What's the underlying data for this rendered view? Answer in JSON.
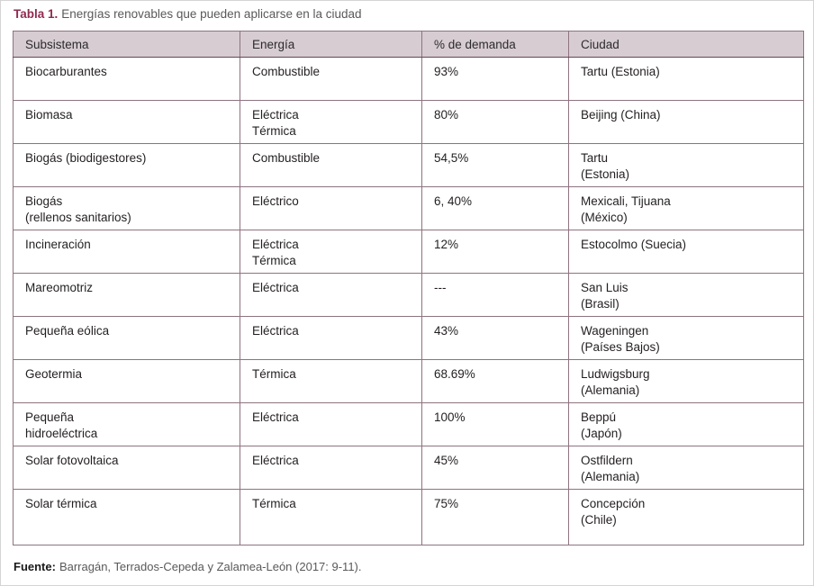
{
  "title": {
    "label": "Tabla 1.",
    "text": "Energías renovables que pueden aplicarse en la ciudad"
  },
  "table": {
    "headers": [
      "Subsistema",
      "Energía",
      "% de demanda",
      "Ciudad"
    ],
    "column_keys": [
      "subsistema",
      "energia",
      "demanda",
      "ciudad"
    ],
    "rows": [
      {
        "subsistema": "Biocarburantes",
        "energia": "Combustible",
        "demanda": "93%",
        "ciudad": "Tartu (Estonia)"
      },
      {
        "subsistema": "Biomasa",
        "energia": "Eléctrica\nTérmica",
        "demanda": "80%",
        "ciudad": "Beijing (China)"
      },
      {
        "subsistema": "Biogás (biodigestores)",
        "energia": "Combustible",
        "demanda": "54,5%",
        "ciudad": "Tartu\n(Estonia)"
      },
      {
        "subsistema": "Biogás\n(rellenos sanitarios)",
        "energia": "Eléctrico",
        "demanda": "6, 40%",
        "ciudad": "Mexicali, Tijuana\n(México)"
      },
      {
        "subsistema": "Incineración",
        "energia": "Eléctrica\nTérmica",
        "demanda": "12%",
        "ciudad": "Estocolmo (Suecia)"
      },
      {
        "subsistema": "Mareomotriz",
        "energia": "Eléctrica",
        "demanda": "---",
        "ciudad": "San Luis\n(Brasil)"
      },
      {
        "subsistema": "Pequeña eólica",
        "energia": "Eléctrica",
        "demanda": "43%",
        "ciudad": "Wageningen\n(Países Bajos)"
      },
      {
        "subsistema": "Geotermia",
        "energia": "Térmica",
        "demanda": "68.69%",
        "ciudad": "Ludwigsburg\n(Alemania)"
      },
      {
        "subsistema": "Pequeña\nhidroeléctrica",
        "energia": "Eléctrica",
        "demanda": "100%",
        "ciudad": "Beppú\n(Japón)"
      },
      {
        "subsistema": "Solar fotovoltaica",
        "energia": "Eléctrica",
        "demanda": "45%",
        "ciudad": "Ostfildern\n(Alemania)"
      },
      {
        "subsistema": "Solar térmica",
        "energia": "Térmica",
        "demanda": "75%",
        "ciudad": "Concepción\n(Chile)"
      }
    ]
  },
  "footer": {
    "label": "Fuente:",
    "text": "Barragán, Terrados-Cepeda y Zalamea-León (2017: 9-11)."
  },
  "colors": {
    "title_accent": "#8e2a50",
    "muted_text": "#595959",
    "cell_text": "#231f20",
    "header_bg": "#d7ccd2",
    "table_border": "#8d7380",
    "header_underline": "#5e4a54",
    "page_bg": "#ffffff",
    "page_border": "#d4d4d4"
  }
}
